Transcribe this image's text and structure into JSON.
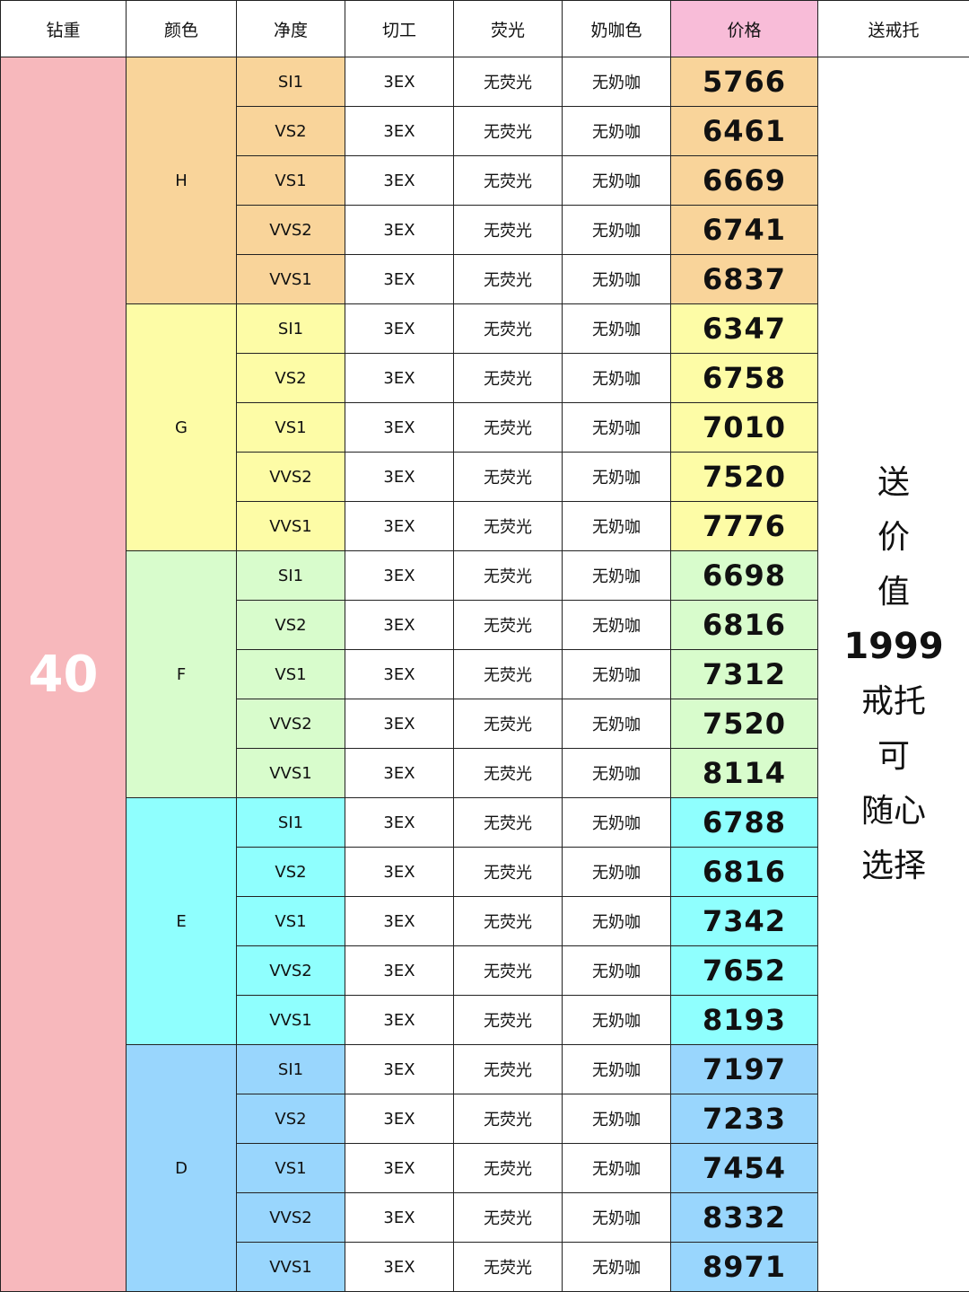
{
  "headers": [
    "钻重",
    "颜色",
    "净度",
    "切工",
    "荧光",
    "奶咖色",
    "价格",
    "送戒托"
  ],
  "carat": "40",
  "gift_lines": [
    "送",
    "价",
    "值",
    "1999",
    "戒托",
    "可",
    "随心",
    "选择"
  ],
  "colors": {
    "price_header": "#f8bcd8",
    "carat_bg": "#f7b8bc",
    "H": "#f9d49a",
    "G": "#fdfca6",
    "F": "#d8fccc",
    "E": "#8ffffe",
    "D": "#99d6fd"
  },
  "groups": [
    {
      "color": "H",
      "rows": [
        {
          "clarity": "SI1",
          "cut": "3EX",
          "fluorescence": "无荧光",
          "milky": "无奶咖",
          "price": "5766"
        },
        {
          "clarity": "VS2",
          "cut": "3EX",
          "fluorescence": "无荧光",
          "milky": "无奶咖",
          "price": "6461"
        },
        {
          "clarity": "VS1",
          "cut": "3EX",
          "fluorescence": "无荧光",
          "milky": "无奶咖",
          "price": "6669"
        },
        {
          "clarity": "VVS2",
          "cut": "3EX",
          "fluorescence": "无荧光",
          "milky": "无奶咖",
          "price": "6741"
        },
        {
          "clarity": "VVS1",
          "cut": "3EX",
          "fluorescence": "无荧光",
          "milky": "无奶咖",
          "price": "6837"
        }
      ]
    },
    {
      "color": "G",
      "rows": [
        {
          "clarity": "SI1",
          "cut": "3EX",
          "fluorescence": "无荧光",
          "milky": "无奶咖",
          "price": "6347"
        },
        {
          "clarity": "VS2",
          "cut": "3EX",
          "fluorescence": "无荧光",
          "milky": "无奶咖",
          "price": "6758"
        },
        {
          "clarity": "VS1",
          "cut": "3EX",
          "fluorescence": "无荧光",
          "milky": "无奶咖",
          "price": "7010"
        },
        {
          "clarity": "VVS2",
          "cut": "3EX",
          "fluorescence": "无荧光",
          "milky": "无奶咖",
          "price": "7520"
        },
        {
          "clarity": "VVS1",
          "cut": "3EX",
          "fluorescence": "无荧光",
          "milky": "无奶咖",
          "price": "7776"
        }
      ]
    },
    {
      "color": "F",
      "rows": [
        {
          "clarity": "SI1",
          "cut": "3EX",
          "fluorescence": "无荧光",
          "milky": "无奶咖",
          "price": "6698"
        },
        {
          "clarity": "VS2",
          "cut": "3EX",
          "fluorescence": "无荧光",
          "milky": "无奶咖",
          "price": "6816"
        },
        {
          "clarity": "VS1",
          "cut": "3EX",
          "fluorescence": "无荧光",
          "milky": "无奶咖",
          "price": "7312"
        },
        {
          "clarity": "VVS2",
          "cut": "3EX",
          "fluorescence": "无荧光",
          "milky": "无奶咖",
          "price": "7520"
        },
        {
          "clarity": "VVS1",
          "cut": "3EX",
          "fluorescence": "无荧光",
          "milky": "无奶咖",
          "price": "8114"
        }
      ]
    },
    {
      "color": "E",
      "rows": [
        {
          "clarity": "SI1",
          "cut": "3EX",
          "fluorescence": "无荧光",
          "milky": "无奶咖",
          "price": "6788"
        },
        {
          "clarity": "VS2",
          "cut": "3EX",
          "fluorescence": "无荧光",
          "milky": "无奶咖",
          "price": "6816"
        },
        {
          "clarity": "VS1",
          "cut": "3EX",
          "fluorescence": "无荧光",
          "milky": "无奶咖",
          "price": "7342"
        },
        {
          "clarity": "VVS2",
          "cut": "3EX",
          "fluorescence": "无荧光",
          "milky": "无奶咖",
          "price": "7652"
        },
        {
          "clarity": "VVS1",
          "cut": "3EX",
          "fluorescence": "无荧光",
          "milky": "无奶咖",
          "price": "8193"
        }
      ]
    },
    {
      "color": "D",
      "rows": [
        {
          "clarity": "SI1",
          "cut": "3EX",
          "fluorescence": "无荧光",
          "milky": "无奶咖",
          "price": "7197"
        },
        {
          "clarity": "VS2",
          "cut": "3EX",
          "fluorescence": "无荧光",
          "milky": "无奶咖",
          "price": "7233"
        },
        {
          "clarity": "VS1",
          "cut": "3EX",
          "fluorescence": "无荧光",
          "milky": "无奶咖",
          "price": "7454"
        },
        {
          "clarity": "VVS2",
          "cut": "3EX",
          "fluorescence": "无荧光",
          "milky": "无奶咖",
          "price": "8332"
        },
        {
          "clarity": "VVS1",
          "cut": "3EX",
          "fluorescence": "无荧光",
          "milky": "无奶咖",
          "price": "8971"
        }
      ]
    }
  ]
}
